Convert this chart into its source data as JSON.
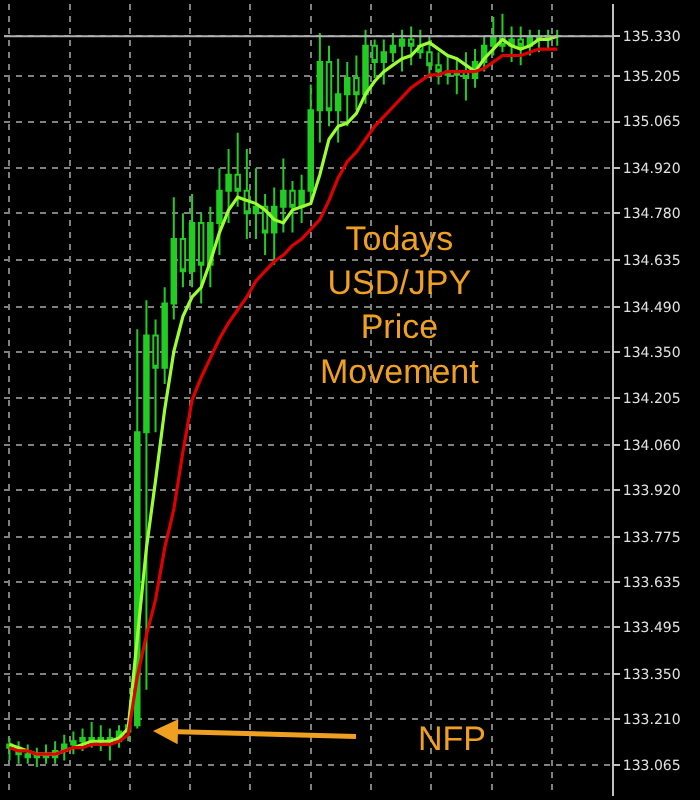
{
  "chart_data": {
    "type": "candlestick",
    "color": "#22cc22",
    "categories": [
      null,
      null,
      null,
      null,
      null,
      null,
      null,
      null,
      null,
      null,
      null,
      null,
      null,
      null,
      null,
      null,
      null,
      null,
      null,
      null,
      null,
      null,
      null,
      null,
      null,
      null,
      null,
      null,
      null,
      null,
      null,
      null,
      null,
      null,
      null,
      null,
      null,
      null,
      null,
      null,
      null,
      null,
      null,
      null,
      null,
      null,
      null,
      null,
      null,
      null,
      null,
      null,
      null,
      null,
      null,
      null,
      null,
      null,
      null,
      null,
      null
    ],
    "ohlc": [
      [
        133.13,
        133.15,
        133.08,
        133.12
      ],
      [
        133.12,
        133.14,
        133.07,
        133.1
      ],
      [
        133.1,
        133.13,
        133.07,
        133.09
      ],
      [
        133.09,
        133.12,
        133.06,
        133.1
      ],
      [
        133.1,
        133.13,
        133.07,
        133.09
      ],
      [
        133.09,
        133.14,
        133.07,
        133.11
      ],
      [
        133.11,
        133.16,
        133.08,
        133.13
      ],
      [
        133.13,
        133.17,
        133.1,
        133.14
      ],
      [
        133.14,
        133.18,
        133.11,
        133.15
      ],
      [
        133.15,
        133.2,
        133.12,
        133.14
      ],
      [
        133.14,
        133.19,
        133.11,
        133.15
      ],
      [
        133.15,
        133.18,
        133.08,
        133.14
      ],
      [
        133.14,
        133.19,
        133.12,
        133.17
      ],
      [
        133.17,
        133.2,
        133.14,
        133.19
      ],
      [
        133.19,
        134.42,
        133.18,
        134.1
      ],
      [
        134.1,
        134.51,
        133.3,
        134.4
      ],
      [
        134.4,
        134.45,
        134.1,
        134.3
      ],
      [
        134.3,
        134.55,
        134.25,
        134.5
      ],
      [
        134.5,
        134.83,
        134.45,
        134.7
      ],
      [
        134.7,
        134.78,
        134.55,
        134.6
      ],
      [
        134.6,
        134.84,
        134.55,
        134.75
      ],
      [
        134.75,
        134.78,
        134.5,
        134.62
      ],
      [
        134.62,
        134.8,
        134.55,
        134.75
      ],
      [
        134.75,
        134.92,
        134.65,
        134.85
      ],
      [
        134.85,
        134.98,
        134.75,
        134.9
      ],
      [
        134.9,
        135.03,
        134.8,
        134.85
      ],
      [
        134.85,
        134.98,
        134.7,
        134.78
      ],
      [
        134.78,
        134.92,
        134.7,
        134.8
      ],
      [
        134.8,
        134.84,
        134.65,
        134.72
      ],
      [
        134.72,
        134.86,
        134.62,
        134.8
      ],
      [
        134.8,
        134.95,
        134.72,
        134.85
      ],
      [
        134.85,
        134.88,
        134.72,
        134.8
      ],
      [
        134.8,
        134.9,
        134.75,
        134.85
      ],
      [
        134.85,
        135.18,
        134.82,
        135.1
      ],
      [
        135.1,
        135.34,
        135.0,
        135.25
      ],
      [
        135.25,
        135.3,
        135.05,
        135.1
      ],
      [
        135.1,
        135.26,
        135.0,
        135.15
      ],
      [
        135.15,
        135.25,
        135.05,
        135.2
      ],
      [
        135.2,
        135.27,
        135.1,
        135.15
      ],
      [
        135.15,
        135.35,
        135.12,
        135.3
      ],
      [
        135.3,
        135.32,
        135.2,
        135.25
      ],
      [
        135.25,
        135.32,
        135.18,
        135.28
      ],
      [
        135.28,
        135.34,
        135.25,
        135.3
      ],
      [
        135.3,
        135.35,
        135.22,
        135.32
      ],
      [
        135.32,
        135.36,
        135.24,
        135.3
      ],
      [
        135.3,
        135.35,
        135.26,
        135.28
      ],
      [
        135.28,
        135.33,
        135.2,
        135.24
      ],
      [
        135.24,
        135.28,
        135.18,
        135.22
      ],
      [
        135.22,
        135.27,
        135.18,
        135.21
      ],
      [
        135.21,
        135.26,
        135.15,
        135.22
      ],
      [
        135.22,
        135.28,
        135.13,
        135.2
      ],
      [
        135.2,
        135.29,
        135.17,
        135.25
      ],
      [
        135.25,
        135.33,
        135.22,
        135.3
      ],
      [
        135.3,
        135.39,
        135.27,
        135.33
      ],
      [
        135.33,
        135.4,
        135.28,
        135.3
      ],
      [
        135.3,
        135.36,
        135.25,
        135.32
      ],
      [
        135.32,
        135.36,
        135.24,
        135.3
      ],
      [
        135.3,
        135.35,
        135.27,
        135.33
      ],
      [
        135.33,
        135.35,
        135.28,
        135.32
      ],
      [
        135.32,
        135.35,
        135.29,
        135.33
      ],
      [
        135.33,
        135.35,
        135.3,
        135.33
      ]
    ],
    "series": [
      {
        "type": "line",
        "color": "#99ff33",
        "values": [
          133.13,
          133.12,
          133.11,
          133.1,
          133.1,
          133.1,
          133.11,
          133.12,
          133.13,
          133.14,
          133.14,
          133.14,
          133.15,
          133.18,
          133.46,
          133.74,
          133.95,
          134.17,
          134.35,
          134.46,
          134.52,
          134.55,
          134.63,
          134.72,
          134.79,
          134.83,
          134.82,
          134.81,
          134.79,
          134.76,
          134.75,
          134.79,
          134.8,
          134.81,
          134.9,
          135.01,
          135.05,
          135.06,
          135.09,
          135.15,
          135.19,
          135.22,
          135.24,
          135.26,
          135.27,
          135.3,
          135.31,
          135.29,
          135.27,
          135.26,
          135.24,
          135.22,
          135.26,
          135.29,
          135.32,
          135.3,
          135.29,
          135.3,
          135.32,
          135.32,
          135.33
        ]
      },
      {
        "type": "line",
        "color": "#e00000",
        "values": [
          133.12,
          133.11,
          133.11,
          133.1,
          133.1,
          133.1,
          133.11,
          133.12,
          133.12,
          133.13,
          133.13,
          133.13,
          133.14,
          133.16,
          133.34,
          133.47,
          133.58,
          133.74,
          133.86,
          134.04,
          134.2,
          134.27,
          134.33,
          134.39,
          134.44,
          134.48,
          134.52,
          134.57,
          134.6,
          134.63,
          134.65,
          134.68,
          134.7,
          134.73,
          134.76,
          134.82,
          134.89,
          134.94,
          134.97,
          135.01,
          135.05,
          135.08,
          135.11,
          135.14,
          135.17,
          135.19,
          135.21,
          135.21,
          135.22,
          135.22,
          135.22,
          135.22,
          135.23,
          135.25,
          135.27,
          135.27,
          135.27,
          135.28,
          135.29,
          135.29,
          135.29
        ]
      }
    ],
    "ylim": [
      132.97,
      135.43
    ],
    "yticks": [
      133.065,
      {
        "value": 133.21,
        "label": "133.210"
      },
      {
        "value": 133.35,
        "label": "133.350"
      },
      133.495,
      133.635,
      133.775,
      {
        "value": 133.92,
        "label": "133.920"
      },
      {
        "value": 134.06,
        "label": "134.060"
      },
      134.205,
      {
        "value": 134.35,
        "label": "134.350"
      },
      {
        "value": 134.49,
        "label": "134.490"
      },
      134.635,
      {
        "value": 134.78,
        "label": "134.780"
      },
      {
        "value": 134.92,
        "label": "134.920"
      },
      135.065,
      135.205,
      {
        "value": 135.33,
        "label": "135.330"
      }
    ],
    "ref_lines": [
      {
        "axis": "y",
        "value": 135.33,
        "color": "#b0b0b0"
      }
    ],
    "grid": true,
    "tick_labels": "y",
    "annotations": [
      "Todays\nUSD/JPY\nPrice\nMovement",
      "NFP"
    ]
  }
}
